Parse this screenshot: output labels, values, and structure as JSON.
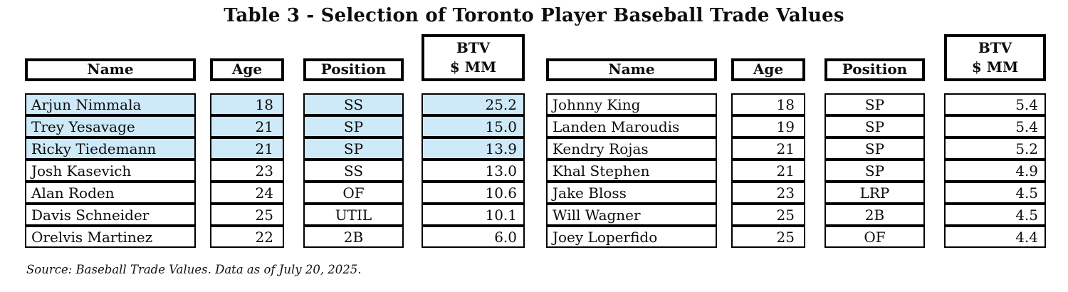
{
  "title": "Table 3 - Selection of Toronto Player Baseball Trade Values",
  "source_note": "Source: Baseball Trade Values. Data as of July 20, 2025.",
  "colors": {
    "highlight": "#cee9f8",
    "border": "#000000",
    "background": "#ffffff"
  },
  "headers": {
    "name": "Name",
    "age": "Age",
    "position": "Position",
    "btv_line1": "BTV",
    "btv_line2": "$ MM"
  },
  "tables": [
    {
      "rows": [
        {
          "name": "Arjun Nimmala",
          "age": "18",
          "position": "SS",
          "btv": "25.2",
          "highlighted": true
        },
        {
          "name": "Trey Yesavage",
          "age": "21",
          "position": "SP",
          "btv": "15.0",
          "highlighted": true
        },
        {
          "name": "Ricky Tiedemann",
          "age": "21",
          "position": "SP",
          "btv": "13.9",
          "highlighted": true
        },
        {
          "name": "Josh Kasevich",
          "age": "23",
          "position": "SS",
          "btv": "13.0",
          "highlighted": false
        },
        {
          "name": "Alan Roden",
          "age": "24",
          "position": "OF",
          "btv": "10.6",
          "highlighted": false
        },
        {
          "name": "Davis Schneider",
          "age": "25",
          "position": "UTIL",
          "btv": "10.1",
          "highlighted": false
        },
        {
          "name": "Orelvis Martinez",
          "age": "22",
          "position": "2B",
          "btv": "6.0",
          "highlighted": false
        }
      ]
    },
    {
      "rows": [
        {
          "name": "Johnny King",
          "age": "18",
          "position": "SP",
          "btv": "5.4",
          "highlighted": false
        },
        {
          "name": "Landen Maroudis",
          "age": "19",
          "position": "SP",
          "btv": "5.4",
          "highlighted": false
        },
        {
          "name": "Kendry Rojas",
          "age": "21",
          "position": "SP",
          "btv": "5.2",
          "highlighted": false
        },
        {
          "name": "Khal Stephen",
          "age": "21",
          "position": "SP",
          "btv": "4.9",
          "highlighted": false
        },
        {
          "name": "Jake Bloss",
          "age": "23",
          "position": "LRP",
          "btv": "4.5",
          "highlighted": false
        },
        {
          "name": "Will Wagner",
          "age": "25",
          "position": "2B",
          "btv": "4.5",
          "highlighted": false
        },
        {
          "name": "Joey Loperfido",
          "age": "25",
          "position": "OF",
          "btv": "4.4",
          "highlighted": false
        }
      ]
    }
  ]
}
